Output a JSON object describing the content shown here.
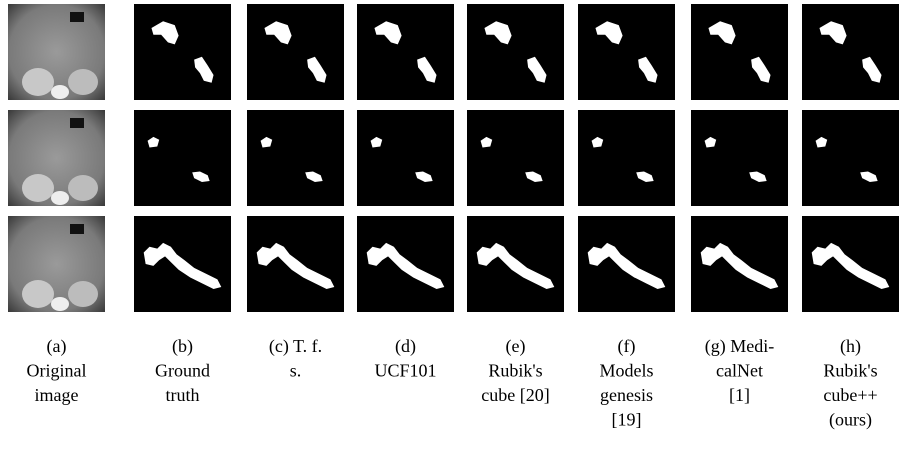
{
  "captions": [
    [
      "(a)",
      "Original",
      "image"
    ],
    [
      "(b)",
      "Ground",
      "truth"
    ],
    [
      "(c) T. f.",
      "s."
    ],
    [
      "(d)",
      "UCF101"
    ],
    [
      "(e)",
      "Rubik's",
      "cube [20]"
    ],
    [
      "(f)",
      "Models",
      "genesis",
      "[19]"
    ],
    [
      "(g) Medi-",
      "calNet",
      "[1]"
    ],
    [
      "(h)",
      "Rubik's",
      "cube++",
      "(ours)"
    ]
  ]
}
